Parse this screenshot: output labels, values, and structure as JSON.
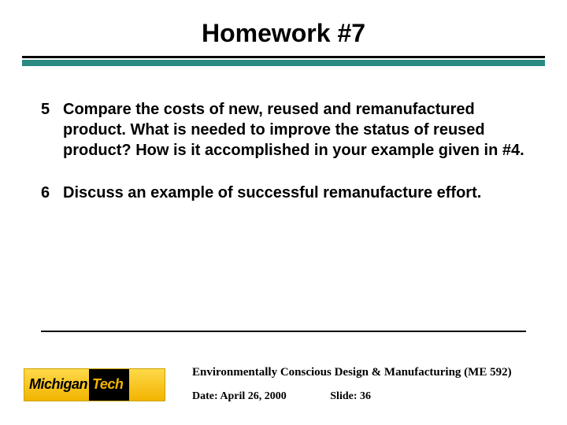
{
  "slide": {
    "title": "Homework #7",
    "rule": {
      "top_color": "#000000",
      "bottom_color": "#2a8a82"
    },
    "items": [
      {
        "num": "5",
        "text": "Compare the costs of new, reused and remanufactured product. What is needed to improve the status of reused product? How is it accomplished in your example given in #4."
      },
      {
        "num": "6",
        "text": "Discuss an example of successful remanufacture effort."
      }
    ]
  },
  "logo": {
    "left": "Michigan",
    "right": "Tech"
  },
  "footer": {
    "course": "Environmentally Conscious Design & Manufacturing (ME 592)",
    "date_label": "Date: April 26, 2000",
    "slide_label": "Slide: 36"
  },
  "style": {
    "title_fontsize": 32,
    "body_fontsize": 20,
    "footer_fontsize": 15,
    "background": "#ffffff",
    "text_color": "#000000"
  }
}
